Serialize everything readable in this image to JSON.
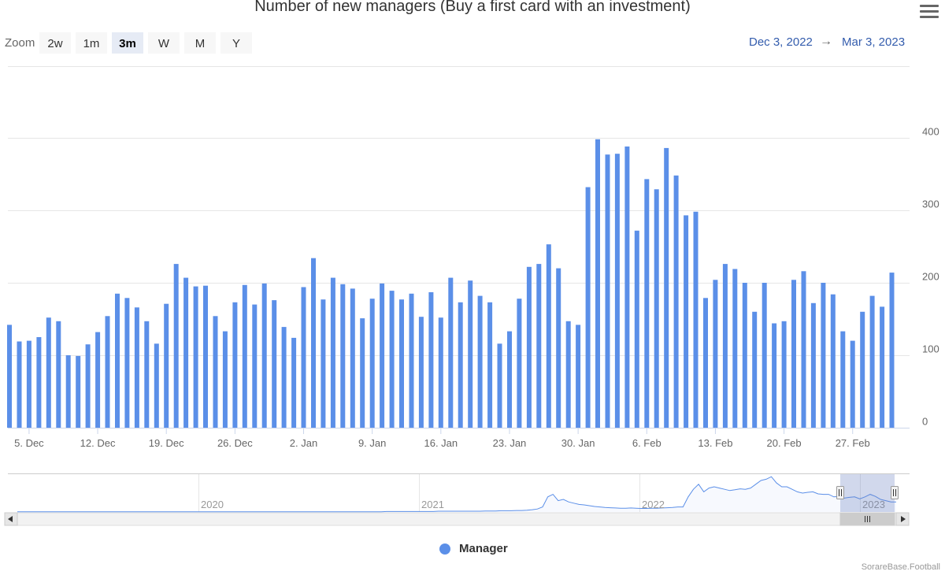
{
  "title": "Number of new managers (Buy a first card with an investment)",
  "zoom": {
    "label": "Zoom",
    "buttons": [
      "2w",
      "1m",
      "3m",
      "W",
      "M",
      "Y"
    ],
    "active": "3m"
  },
  "range": {
    "from": "Dec 3, 2022",
    "arrow": "→",
    "to": "Mar 3, 2023"
  },
  "legend": {
    "label": "Manager",
    "color": "#5b8fe8"
  },
  "credit": "SorareBase.Football",
  "icons": {
    "menu": "hamburger-menu-icon",
    "scroll_left": "arrow-left-icon",
    "scroll_right": "arrow-right-icon"
  },
  "chart_data": {
    "type": "bar",
    "x_start": "2022-12-03",
    "x_end": "2023-03-02",
    "values": [
      142,
      119,
      120,
      125,
      152,
      147,
      100,
      99,
      115,
      132,
      154,
      185,
      179,
      166,
      147,
      116,
      171,
      226,
      207,
      195,
      196,
      154,
      133,
      173,
      197,
      170,
      199,
      176,
      139,
      124,
      194,
      234,
      177,
      207,
      198,
      192,
      151,
      178,
      199,
      189,
      177,
      185,
      153,
      187,
      152,
      207,
      173,
      203,
      182,
      173,
      116,
      133,
      178,
      222,
      226,
      253,
      220,
      147,
      142,
      332,
      398,
      377,
      378,
      388,
      272,
      343,
      329,
      386,
      348,
      293,
      298,
      179,
      204,
      226,
      219,
      200,
      160,
      200,
      144,
      147,
      204,
      216,
      172,
      200,
      184,
      133,
      120,
      160,
      182,
      167,
      214
    ],
    "x_tick_labels": [
      "5. Dec",
      "12. Dec",
      "19. Dec",
      "26. Dec",
      "2. Jan",
      "9. Jan",
      "16. Jan",
      "23. Jan",
      "30. Jan",
      "6. Feb",
      "13. Feb",
      "20. Feb",
      "27. Feb"
    ],
    "y_ticks": [
      0,
      100,
      200,
      300,
      400
    ],
    "ylim": [
      0,
      400
    ],
    "series": [
      {
        "name": "Manager",
        "color": "#5b8fe8"
      }
    ],
    "grid": true,
    "legend_position": "bottom-center",
    "navigator": {
      "year_labels": [
        "2020",
        "2021",
        "2022",
        "2023"
      ],
      "values": [
        1,
        1,
        1,
        1,
        1,
        1,
        1,
        1,
        1,
        1,
        1,
        1,
        1,
        1,
        1,
        1,
        1,
        1,
        1,
        1,
        1,
        1,
        1,
        1,
        1,
        1,
        1,
        1,
        1,
        1,
        1,
        1,
        1,
        1,
        1,
        1,
        1,
        1,
        1,
        1,
        1,
        1,
        1,
        1,
        1,
        1,
        1,
        1,
        1,
        1,
        1,
        1,
        1,
        1,
        1,
        1,
        1,
        1,
        1,
        1,
        1,
        1,
        1,
        1,
        1,
        1,
        1,
        1,
        1,
        1,
        1,
        2,
        2,
        2,
        2,
        2,
        2,
        2,
        2,
        2,
        2,
        3,
        3,
        3,
        3,
        3,
        3,
        3,
        3,
        3,
        4,
        4,
        4,
        5,
        5,
        5,
        6,
        6,
        7,
        9,
        12,
        20,
        60,
        70,
        45,
        50,
        40,
        35,
        30,
        28,
        25,
        22,
        20,
        18,
        17,
        16,
        15,
        15,
        16,
        15,
        14,
        14,
        15,
        15,
        16,
        17,
        18,
        20,
        20,
        60,
        90,
        110,
        80,
        95,
        100,
        95,
        90,
        85,
        88,
        92,
        90,
        95,
        110,
        125,
        130,
        140,
        115,
        100,
        100,
        90,
        80,
        75,
        78,
        80,
        72,
        70,
        70,
        60,
        62,
        55,
        58,
        60,
        52,
        60,
        70,
        62,
        50,
        45,
        40,
        40
      ]
    }
  }
}
